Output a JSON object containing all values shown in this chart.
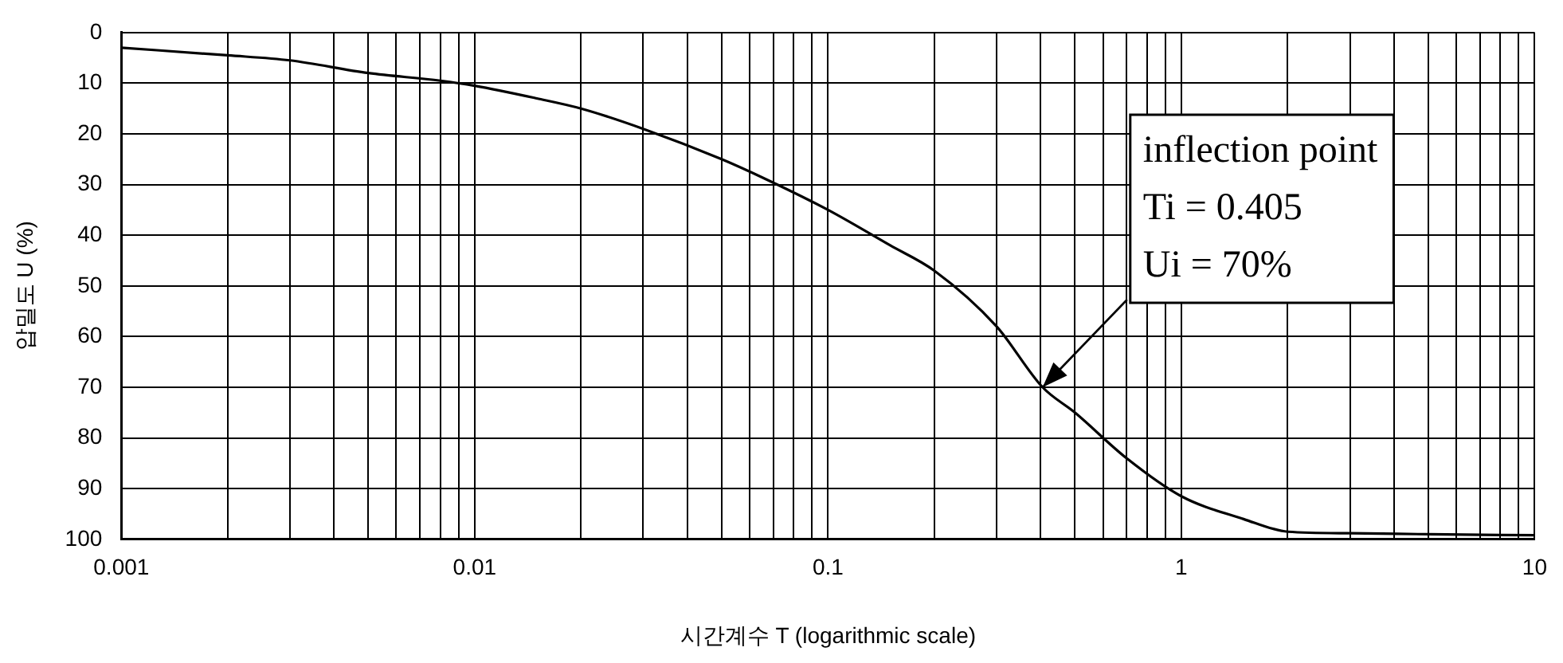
{
  "chart_data": {
    "type": "line",
    "xlabel": "시간계수 T (logarithmic scale)",
    "ylabel": "압밀도 U (%)",
    "x": [
      0.001,
      0.002,
      0.003,
      0.005,
      0.008,
      0.01,
      0.015,
      0.02,
      0.03,
      0.05,
      0.067,
      0.1,
      0.15,
      0.2,
      0.3,
      0.405,
      0.5,
      0.7,
      1,
      1.5,
      2,
      3,
      5,
      10
    ],
    "series": [
      {
        "color": "#000000",
        "values": [
          3,
          4.5,
          5.5,
          8,
          9.5,
          10.5,
          13,
          15,
          19,
          25,
          29,
          35,
          42,
          47,
          58,
          70,
          75,
          84,
          91.5,
          96,
          98.5,
          98.8,
          99,
          99.2
        ]
      }
    ],
    "log": "x",
    "xlim": [
      0.001,
      10
    ],
    "xticks": [
      0.001,
      {
        "value": 0.002,
        "label": null
      },
      {
        "value": 0.003,
        "label": null
      },
      {
        "value": 0.004,
        "label": null
      },
      {
        "value": 0.005,
        "label": null
      },
      {
        "value": 0.006,
        "label": null
      },
      {
        "value": 0.007,
        "label": null
      },
      {
        "value": 0.008,
        "label": null
      },
      {
        "value": 0.009,
        "label": null
      },
      0.01,
      {
        "value": 0.02,
        "label": null
      },
      {
        "value": 0.03,
        "label": null
      },
      {
        "value": 0.04,
        "label": null
      },
      {
        "value": 0.05,
        "label": null
      },
      {
        "value": 0.06,
        "label": null
      },
      {
        "value": 0.07,
        "label": null
      },
      {
        "value": 0.08,
        "label": null
      },
      {
        "value": 0.09,
        "label": null
      },
      0.1,
      {
        "value": 0.2,
        "label": null
      },
      {
        "value": 0.3,
        "label": null
      },
      {
        "value": 0.4,
        "label": null
      },
      {
        "value": 0.5,
        "label": null
      },
      {
        "value": 0.6,
        "label": null
      },
      {
        "value": 0.7,
        "label": null
      },
      {
        "value": 0.8,
        "label": null
      },
      {
        "value": 0.9,
        "label": null
      },
      1,
      {
        "value": 2,
        "label": null
      },
      {
        "value": 3,
        "label": null
      },
      {
        "value": 4,
        "label": null
      },
      {
        "value": 5,
        "label": null
      },
      {
        "value": 6,
        "label": null
      },
      {
        "value": 7,
        "label": null
      },
      {
        "value": 8,
        "label": null
      },
      {
        "value": 9,
        "label": null
      },
      10
    ],
    "ylim": [
      100,
      0
    ],
    "yticks": [
      0,
      10,
      20,
      30,
      40,
      50,
      60,
      70,
      80,
      90,
      100
    ],
    "grid": true,
    "legend": false,
    "marker": "none",
    "line_style": "solid",
    "annotations": [
      {
        "text": "inflection point\nTi = 0.405\nUi = 70%",
        "x": 0.405,
        "y": 70
      }
    ]
  }
}
